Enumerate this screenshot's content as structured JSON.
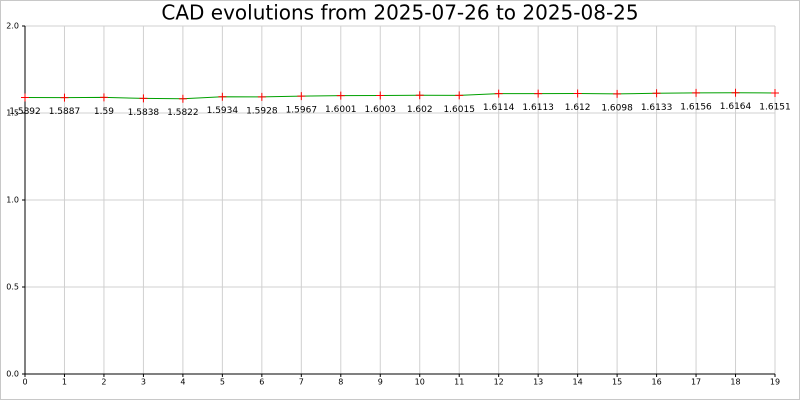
{
  "chart_data": {
    "type": "line",
    "title": "CAD evolutions from 2025-07-26 to 2025-08-25",
    "x": [
      0,
      1,
      2,
      3,
      4,
      5,
      6,
      7,
      8,
      9,
      10,
      11,
      12,
      13,
      14,
      15,
      16,
      17,
      18,
      19
    ],
    "values": [
      1.5892,
      1.5887,
      1.59,
      1.5838,
      1.5822,
      1.5934,
      1.5928,
      1.5967,
      1.6001,
      1.6003,
      1.602,
      1.6015,
      1.6114,
      1.6113,
      1.612,
      1.6098,
      1.6133,
      1.6156,
      1.6164,
      1.6151
    ],
    "color": "#00a000",
    "marker_color": "#ff0000",
    "xlim": [
      0,
      19
    ],
    "xticks": [
      0,
      1,
      2,
      3,
      4,
      5,
      6,
      7,
      8,
      9,
      10,
      11,
      12,
      13,
      14,
      15,
      16,
      17,
      18,
      19
    ],
    "ylim": [
      0,
      2
    ],
    "yticks": [
      {
        "value": 0,
        "label": "0.0"
      },
      0.5,
      {
        "value": 1,
        "label": "1.0"
      },
      1.5,
      {
        "value": 2,
        "label": "2.0"
      }
    ],
    "grid": true
  }
}
